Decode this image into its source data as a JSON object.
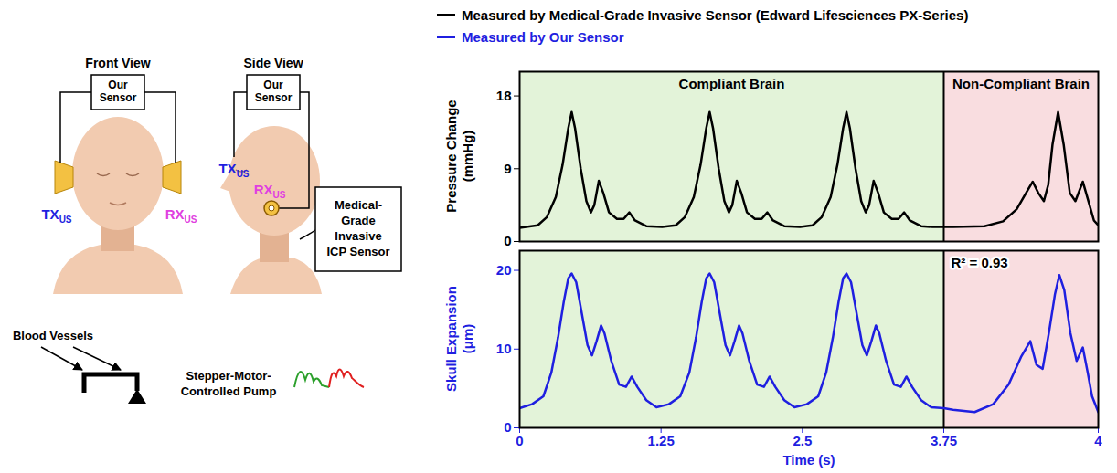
{
  "chart_data": [
    {
      "type": "line",
      "y_label": "Pressure Change (mmHg)",
      "xlim": [
        0,
        4
      ],
      "ylim": [
        0,
        21
      ],
      "yticks": [
        0,
        9,
        18
      ],
      "tick_labels": "y",
      "legend": "top",
      "regions": [
        {
          "label": "Compliant Brain",
          "from": 0,
          "to": 3.75,
          "color": "#e3f3d9"
        },
        {
          "label": "Non-Compliant Brain",
          "from": 3.75,
          "to": 4,
          "color": "#f9dde0"
        }
      ],
      "x": [
        0,
        0.16,
        0.24,
        0.32,
        0.38,
        0.43,
        0.46,
        0.49,
        0.54,
        0.59,
        0.63,
        0.66,
        0.7,
        0.74,
        0.79,
        0.86,
        0.92,
        0.97,
        1.02,
        1.12,
        1.26,
        1.38,
        1.46,
        1.54,
        1.6,
        1.65,
        1.68,
        1.71,
        1.76,
        1.81,
        1.85,
        1.88,
        1.92,
        1.96,
        2.01,
        2.08,
        2.14,
        2.19,
        2.24,
        2.34,
        2.48,
        2.59,
        2.67,
        2.75,
        2.81,
        2.86,
        2.89,
        2.92,
        2.97,
        3.02,
        3.06,
        3.09,
        3.13,
        3.17,
        3.22,
        3.29,
        3.35,
        3.4,
        3.45,
        3.55,
        3.65,
        3.75,
        3.765,
        3.816,
        3.846,
        3.868,
        3.887,
        3.894,
        3.903,
        3.912,
        3.919,
        3.926,
        3.935,
        3.944,
        3.954,
        3.963,
        3.975,
        3.984,
        3.993,
        4
      ],
      "series": [
        {
          "name": "Measured by Medical-Grade Invasive Sensor (Edward Lifesciences PX-Series)",
          "color": "#000000",
          "values": [
            1.7,
            2.0,
            3.0,
            5.5,
            9.5,
            14.0,
            16.0,
            14.0,
            9.0,
            5.0,
            3.6,
            4.5,
            7.5,
            6.0,
            3.6,
            2.8,
            2.8,
            3.6,
            2.6,
            1.9,
            1.8,
            2.0,
            3.0,
            5.5,
            9.5,
            14.0,
            16.0,
            14.0,
            9.0,
            5.0,
            3.6,
            4.5,
            7.5,
            6.0,
            3.6,
            2.8,
            2.8,
            3.6,
            2.6,
            1.9,
            1.8,
            2.0,
            3.0,
            5.5,
            9.5,
            14.0,
            16.0,
            14.0,
            9.0,
            5.0,
            3.6,
            4.5,
            7.5,
            6.0,
            3.6,
            2.8,
            2.8,
            3.6,
            2.6,
            1.9,
            1.8,
            1.8,
            1.8,
            1.9,
            2.5,
            4.0,
            6.5,
            7.4,
            6.0,
            5.0,
            7.0,
            12.0,
            16.0,
            12.0,
            6.0,
            5.0,
            7.4,
            5.0,
            2.6,
            2.0
          ]
        }
      ]
    },
    {
      "type": "line",
      "x_label": "Time (s)",
      "y_label": "Skull Expansion (μm)",
      "xlim": [
        0,
        4
      ],
      "xticks": [
        0,
        1.25,
        2.5,
        3.75,
        4
      ],
      "ylim": [
        0,
        22.5
      ],
      "yticks": [
        0,
        10,
        20
      ],
      "legend": "top",
      "regions": [
        {
          "from": 0,
          "to": 3.75,
          "color": "#e3f3d9"
        },
        {
          "from": 3.75,
          "to": 4,
          "color": "#f9dde0"
        }
      ],
      "annotations": [
        {
          "text": "R² = 0.93"
        }
      ],
      "x": [
        0,
        0.11,
        0.21,
        0.28,
        0.34,
        0.39,
        0.43,
        0.46,
        0.5,
        0.55,
        0.6,
        0.64,
        0.68,
        0.72,
        0.75,
        0.81,
        0.88,
        0.94,
        0.99,
        1.04,
        1.12,
        1.21,
        1.32,
        1.42,
        1.5,
        1.56,
        1.61,
        1.65,
        1.68,
        1.72,
        1.77,
        1.82,
        1.86,
        1.9,
        1.94,
        1.97,
        2.03,
        2.1,
        2.16,
        2.21,
        2.26,
        2.34,
        2.43,
        2.54,
        2.64,
        2.71,
        2.77,
        2.82,
        2.86,
        2.89,
        2.93,
        2.98,
        3.03,
        3.07,
        3.11,
        3.15,
        3.18,
        3.24,
        3.31,
        3.37,
        3.42,
        3.47,
        3.55,
        3.64,
        3.75,
        3.765,
        3.8,
        3.83,
        3.855,
        3.875,
        3.89,
        3.9,
        3.91,
        3.92,
        3.93,
        3.937,
        3.945,
        3.955,
        3.965,
        3.975,
        3.983,
        3.99,
        4
      ],
      "series": [
        {
          "name": "Measured by Our Sensor",
          "color": "#1f1fe0",
          "values": [
            2.5,
            3.0,
            4.0,
            7.0,
            11.5,
            16.0,
            19.0,
            19.6,
            18.5,
            14.5,
            10.5,
            9.2,
            11.0,
            13.0,
            12.0,
            8.5,
            5.5,
            5.2,
            6.5,
            5.2,
            3.5,
            2.6,
            3.0,
            4.0,
            7.0,
            11.5,
            16.0,
            19.0,
            19.6,
            18.5,
            14.5,
            10.5,
            9.2,
            11.0,
            13.0,
            12.0,
            8.5,
            5.5,
            5.2,
            6.5,
            5.2,
            3.5,
            2.6,
            3.0,
            4.0,
            7.0,
            11.5,
            16.0,
            19.0,
            19.6,
            18.5,
            14.5,
            10.5,
            9.2,
            11.0,
            13.0,
            12.0,
            8.5,
            5.5,
            5.2,
            6.5,
            5.2,
            3.5,
            2.6,
            2.5,
            2.3,
            2.0,
            3.0,
            5.5,
            9.0,
            11.0,
            8.0,
            7.5,
            12.0,
            17.0,
            19.4,
            17.5,
            12.0,
            8.5,
            10.2,
            7.0,
            4.0,
            2.0
          ]
        }
      ]
    }
  ],
  "diagram": {
    "front_view": {
      "title": "Front View",
      "sensor": "Our Sensor",
      "tx": {
        "text": "TX",
        "sub": "US",
        "color": "#1f1fe0"
      },
      "rx": {
        "text": "RX",
        "sub": "US",
        "color": "#e040e0"
      }
    },
    "side_view": {
      "title": "Side View",
      "sensor": "Our Sensor",
      "tx": {
        "text": "TX",
        "sub": "US",
        "color": "#1f1fe0"
      },
      "rx": {
        "text": "RX",
        "sub": "US",
        "color": "#e040e0"
      },
      "icp_sensor": "Medical-Grade Invasive ICP Sensor"
    },
    "blood_vessels": "Blood Vessels",
    "pump": "Stepper-Motor-Controlled Pump"
  }
}
